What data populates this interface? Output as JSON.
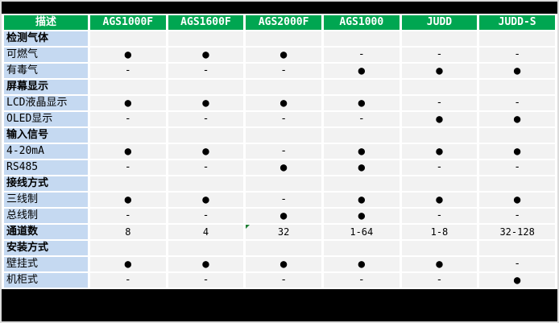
{
  "window": {
    "background_color": "#000000",
    "frame_color": "#dcdcdc"
  },
  "table": {
    "header": {
      "labels": [
        "描述",
        "AGS1000F",
        "AGS1600F",
        "AGS2000F",
        "AGS1000",
        "JUDD",
        "JUDD-S"
      ],
      "bg_color": "#00a651",
      "text_color": "#ffffff"
    },
    "symbols": {
      "supported": "●",
      "not_supported": "-"
    },
    "colors": {
      "label_bg": "#c5d9f1",
      "cell_bg": "#f2f2f2",
      "gridline": "#ffffff",
      "flag": "#1e7e34"
    },
    "flag_marker": {
      "row_index": 12,
      "col_index": 2,
      "description": "green corner triangle on AGS2000F channel-count cell"
    },
    "rows": [
      {
        "label": "检测气体",
        "type": "section",
        "cells": [
          "",
          "",
          "",
          "",
          "",
          ""
        ]
      },
      {
        "label": "可燃气",
        "type": "item",
        "cells": [
          "●",
          "●",
          "●",
          "-",
          "-",
          "-"
        ]
      },
      {
        "label": "有毒气",
        "type": "item",
        "cells": [
          "-",
          "-",
          "-",
          "●",
          "●",
          "●"
        ]
      },
      {
        "label": "屏幕显示",
        "type": "section",
        "cells": [
          "",
          "",
          "",
          "",
          "",
          ""
        ]
      },
      {
        "label": "LCD液晶显示",
        "type": "item",
        "cells": [
          "●",
          "●",
          "●",
          "●",
          "-",
          "-"
        ]
      },
      {
        "label": "OLED显示",
        "type": "item",
        "cells": [
          "-",
          "-",
          "-",
          "-",
          "●",
          "●"
        ]
      },
      {
        "label": "输入信号",
        "type": "section",
        "cells": [
          "",
          "",
          "",
          "",
          "",
          ""
        ]
      },
      {
        "label": "4-20mA",
        "type": "item",
        "cells": [
          "●",
          "●",
          "-",
          "●",
          "●",
          "●"
        ]
      },
      {
        "label": "RS485",
        "type": "item",
        "cells": [
          "-",
          "-",
          "●",
          "●",
          "-",
          "-"
        ]
      },
      {
        "label": "接线方式",
        "type": "section",
        "cells": [
          "",
          "",
          "",
          "",
          "",
          ""
        ]
      },
      {
        "label": "三线制",
        "type": "item",
        "cells": [
          "●",
          "●",
          "-",
          "●",
          "●",
          "●"
        ]
      },
      {
        "label": "总线制",
        "type": "item",
        "cells": [
          "-",
          "-",
          "●",
          "●",
          "-",
          "-"
        ]
      },
      {
        "label": "通道数",
        "type": "bold-item",
        "cells": [
          "8",
          "4",
          "32",
          "1-64",
          "1-8",
          "32-128"
        ]
      },
      {
        "label": "安装方式",
        "type": "section",
        "cells": [
          "",
          "",
          "",
          "",
          "",
          ""
        ]
      },
      {
        "label": "壁挂式",
        "type": "item",
        "cells": [
          "●",
          "●",
          "●",
          "●",
          "●",
          "-"
        ]
      },
      {
        "label": "机柜式",
        "type": "item",
        "cells": [
          "-",
          "-",
          "-",
          "-",
          "-",
          "●"
        ]
      }
    ]
  }
}
